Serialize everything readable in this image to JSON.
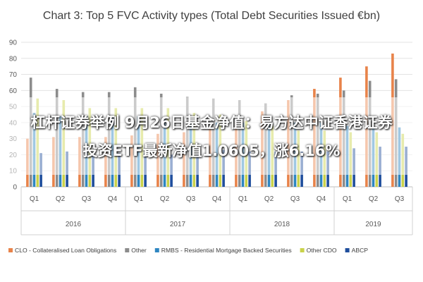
{
  "chart_data": {
    "type": "bar",
    "title": "Chart 3: Top 5 FVC Activity types (Total Debt Securities Issued €bn)",
    "ylim": [
      0,
      90
    ],
    "yticks": [
      "0",
      "10",
      "20",
      "30",
      "40",
      "50",
      "60",
      "70",
      "80",
      "90"
    ],
    "grid": true,
    "legend_position": "bottom",
    "categories": [
      "Q1",
      "Q2",
      "Q3",
      "Q4",
      "Q1",
      "Q2",
      "Q3",
      "Q4",
      "Q1",
      "Q2",
      "Q3",
      "Q4",
      "Q1",
      "Q2",
      "Q3"
    ],
    "years": [
      {
        "label": "2016",
        "start": 0,
        "end": 3
      },
      {
        "label": "2017",
        "start": 4,
        "end": 7
      },
      {
        "label": "2018",
        "start": 8,
        "end": 11
      },
      {
        "label": "2019",
        "start": 12,
        "end": 14
      }
    ],
    "series": [
      {
        "name": "CLO - Collateralised Loan Obligations",
        "color": "#E8834A",
        "values": [
          30,
          31,
          31,
          31,
          32,
          33,
          34,
          36,
          41,
          47,
          54,
          61,
          68,
          75,
          83
        ]
      },
      {
        "name": "Other",
        "color": "#8C8C8C",
        "values": [
          68,
          61,
          59,
          59,
          62,
          58,
          56,
          55,
          54,
          52,
          57,
          58,
          60,
          66,
          67
        ]
      },
      {
        "name": "RMBS - Residential Mortgage Backed Securities",
        "color": "#2E86C1",
        "values": [
          46,
          44,
          44,
          44,
          44,
          42,
          41,
          40,
          40,
          40,
          40,
          40,
          38,
          37,
          37
        ]
      },
      {
        "name": "Other CDO",
        "color": "#C9D24A",
        "values": [
          55,
          54,
          49,
          49,
          49,
          49,
          46,
          45,
          41,
          38,
          35,
          35,
          34,
          34,
          33
        ]
      },
      {
        "name": "ABCP",
        "color": "#1F4E9C",
        "values": [
          21,
          22,
          21,
          21,
          21,
          20,
          20,
          23,
          22,
          22,
          22,
          22,
          24,
          25,
          25
        ]
      }
    ]
  },
  "overlay": {
    "line1": "杠杆证券举例 9月26日基金净值：易方达中证香港证券",
    "line2": "投资ETF最新净值1.0605，涨6.16%"
  }
}
